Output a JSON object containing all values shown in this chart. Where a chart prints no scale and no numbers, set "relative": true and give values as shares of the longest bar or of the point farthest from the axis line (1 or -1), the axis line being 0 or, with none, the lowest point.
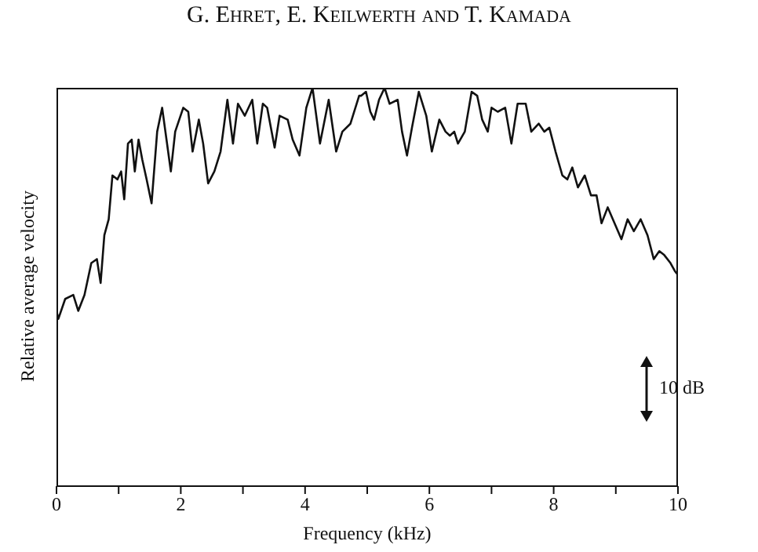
{
  "chart_data": {
    "type": "line",
    "title": "G. Ehret, E. Keilwerth and T. Kamada",
    "xlabel": "Frequency (kHz)",
    "ylabel": "Relative average velocity",
    "annotations": [
      "10 dB"
    ],
    "relative": true,
    "xlim": [
      0,
      10
    ],
    "xticks": [
      0,
      {
        "value": 1,
        "label": null
      },
      2,
      {
        "value": 3,
        "label": null
      },
      4,
      {
        "value": 5,
        "label": null
      },
      6,
      {
        "value": 7,
        "label": null
      },
      8,
      {
        "value": 9,
        "label": null
      },
      10
    ],
    "grid": false,
    "marker": "none",
    "line_style": "solid",
    "series": [
      {
        "color": "#111111",
        "x": [
          0,
          0.03,
          0.14,
          0.27,
          0.35,
          0.45,
          0.56,
          0.65,
          0.71,
          0.77,
          0.84,
          0.9,
          0.98,
          1.04,
          1.09,
          1.15,
          1.21,
          1.26,
          1.32,
          1.38,
          1.45,
          1.53,
          1.62,
          1.7,
          1.77,
          1.84,
          1.91,
          2.04,
          2.12,
          2.19,
          2.29,
          2.36,
          2.44,
          2.54,
          2.64,
          2.75,
          2.84,
          2.92,
          3.03,
          3.15,
          3.23,
          3.32,
          3.39,
          3.51,
          3.59,
          3.72,
          3.8,
          3.91,
          4.02,
          4.12,
          4.24,
          4.38,
          4.5,
          4.6,
          4.73,
          4.87,
          4.9,
          4.98,
          5.05,
          5.11,
          5.19,
          5.28,
          5.36,
          5.49,
          5.56,
          5.64,
          5.72,
          5.83,
          5.95,
          6.04,
          6.16,
          6.26,
          6.33,
          6.4,
          6.46,
          6.57,
          6.68,
          6.77,
          6.85,
          6.94,
          7,
          7.1,
          7.22,
          7.32,
          7.42,
          7.55,
          7.64,
          7.76,
          7.85,
          7.93,
          8.03,
          8.14,
          8.22,
          8.3,
          8.39,
          8.5,
          8.6,
          8.69,
          8.77,
          8.87,
          8.98,
          9.09,
          9.19,
          9.29,
          9.4,
          9.51,
          9.61,
          9.7,
          9.78,
          9.88,
          9.95,
          10
        ],
        "values": [
          0.44,
          0.42,
          0.47,
          0.48,
          0.44,
          0.48,
          0.56,
          0.57,
          0.51,
          0.63,
          0.67,
          0.78,
          0.77,
          0.79,
          0.72,
          0.86,
          0.87,
          0.79,
          0.87,
          0.82,
          0.77,
          0.71,
          0.89,
          0.95,
          0.87,
          0.79,
          0.89,
          0.95,
          0.94,
          0.84,
          0.92,
          0.86,
          0.76,
          0.79,
          0.84,
          0.97,
          0.86,
          0.96,
          0.93,
          0.97,
          0.86,
          0.96,
          0.95,
          0.85,
          0.93,
          0.92,
          0.87,
          0.83,
          0.95,
          1,
          0.86,
          0.97,
          0.84,
          0.89,
          0.91,
          0.98,
          0.98,
          0.99,
          0.94,
          0.92,
          0.97,
          1,
          0.96,
          0.97,
          0.89,
          0.83,
          0.9,
          0.99,
          0.93,
          0.84,
          0.92,
          0.89,
          0.88,
          0.89,
          0.86,
          0.89,
          0.99,
          0.98,
          0.92,
          0.89,
          0.95,
          0.94,
          0.95,
          0.86,
          0.96,
          0.96,
          0.89,
          0.91,
          0.89,
          0.9,
          0.84,
          0.78,
          0.77,
          0.8,
          0.75,
          0.78,
          0.73,
          0.73,
          0.66,
          0.7,
          0.66,
          0.62,
          0.67,
          0.64,
          0.67,
          0.63,
          0.57,
          0.59,
          0.58,
          0.56,
          0.54,
          0.53
        ]
      }
    ]
  }
}
